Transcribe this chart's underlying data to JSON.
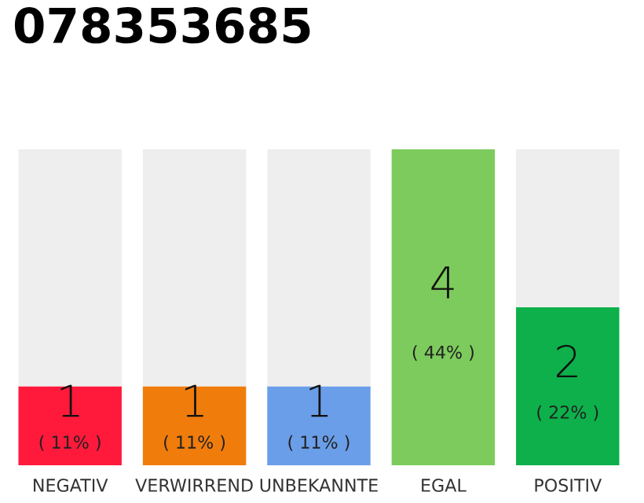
{
  "chart_data": {
    "type": "bar",
    "title": "078353685",
    "stacked": true,
    "categories": [
      "NEGATIV",
      "VERWIRREND",
      "UNBEKANNTE",
      "EGAL",
      "POSITIV"
    ],
    "series": [
      {
        "colors": [
          "#ff1a3c",
          "#f07c0c",
          "#6a9ee8",
          "#7dcb5d",
          "#0db04a"
        ],
        "values": [
          1,
          1,
          1,
          4,
          2
        ],
        "value_labels": [
          "1\n( 11% )",
          "1\n( 11% )",
          "1\n( 11% )",
          "4\n( 44% )",
          "2\n( 22% )"
        ]
      },
      {
        "color": "#eeeeee",
        "values": [
          3,
          3,
          3,
          0,
          2
        ]
      }
    ],
    "grid": false,
    "legend": false
  }
}
